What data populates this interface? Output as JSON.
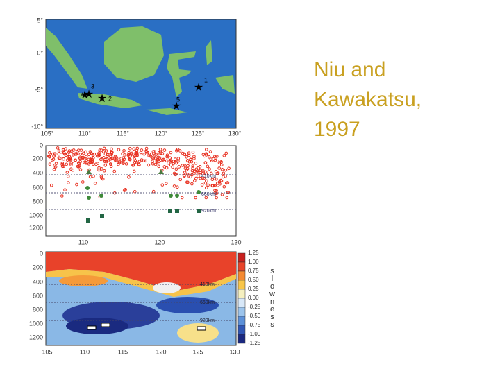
{
  "title": {
    "lines": [
      "Niu and",
      "Kawakatsu,",
      "1997"
    ]
  },
  "map": {
    "lat_labels": [
      "5°",
      "0°",
      "-5°",
      "-10°"
    ],
    "lon_labels": [
      "105°",
      "110°",
      "115°",
      "120°",
      "125°",
      "130°"
    ],
    "stations": [
      "1",
      "2",
      "3",
      "4",
      "5"
    ]
  },
  "section": {
    "depth_labels": [
      "0",
      "200",
      "400",
      "600",
      "800",
      "1000",
      "1200"
    ],
    "lon_labels": [
      "110",
      "120",
      "130"
    ],
    "discontinuities": [
      "410km",
      "660km",
      "920km"
    ]
  },
  "tomography": {
    "depth_labels": [
      "0",
      "200",
      "400",
      "600",
      "800",
      "1000",
      "1200"
    ],
    "lon_labels": [
      "105",
      "110",
      "115",
      "120",
      "125",
      "130"
    ],
    "discontinuities": [
      "410km",
      "660km",
      "920km"
    ],
    "colorbar_labels": [
      "1.25",
      "1.00",
      "0.75",
      "0.50",
      "0.25",
      "0.00",
      "-0.25",
      "-0.50",
      "-0.75",
      "-1.00",
      "-1.25"
    ],
    "colorbar_title": "slowness"
  }
}
